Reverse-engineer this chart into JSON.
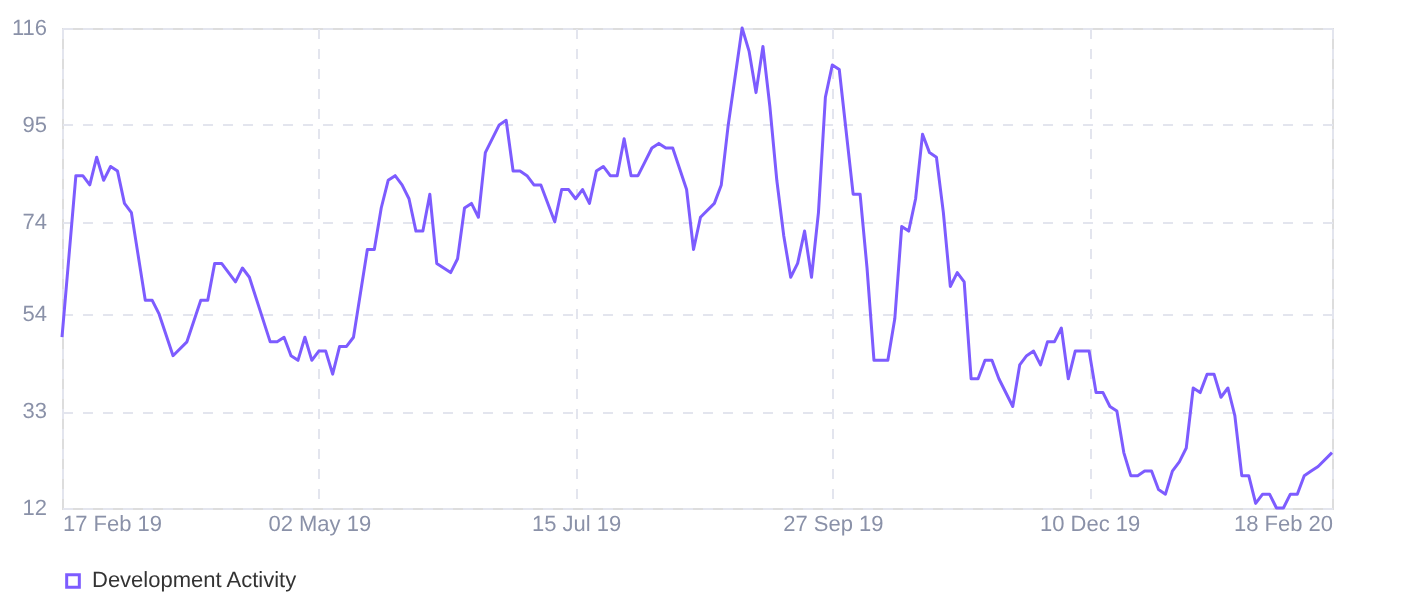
{
  "chart_data": {
    "type": "line",
    "x": [
      "2019-02-17",
      "2019-02-21",
      "2019-02-23",
      "2019-02-25",
      "2019-02-27",
      "2019-03-01",
      "2019-03-03",
      "2019-03-05",
      "2019-03-07",
      "2019-03-09",
      "2019-03-13",
      "2019-03-15",
      "2019-03-17",
      "2019-03-21",
      "2019-03-25",
      "2019-03-29",
      "2019-03-31",
      "2019-04-02",
      "2019-04-04",
      "2019-04-06",
      "2019-04-08",
      "2019-04-10",
      "2019-04-12",
      "2019-04-18",
      "2019-04-20",
      "2019-04-22",
      "2019-04-24",
      "2019-04-26",
      "2019-04-28",
      "2019-04-30",
      "2019-05-02",
      "2019-05-04",
      "2019-05-06",
      "2019-05-08",
      "2019-05-10",
      "2019-05-12",
      "2019-05-16",
      "2019-05-18",
      "2019-05-20",
      "2019-05-22",
      "2019-05-24",
      "2019-05-26",
      "2019-05-28",
      "2019-05-30",
      "2019-06-01",
      "2019-06-03",
      "2019-06-05",
      "2019-06-07",
      "2019-06-09",
      "2019-06-11",
      "2019-06-13",
      "2019-06-15",
      "2019-06-17",
      "2019-06-19",
      "2019-06-23",
      "2019-06-25",
      "2019-06-27",
      "2019-06-29",
      "2019-07-01",
      "2019-07-03",
      "2019-07-05",
      "2019-07-09",
      "2019-07-11",
      "2019-07-13",
      "2019-07-15",
      "2019-07-17",
      "2019-07-19",
      "2019-07-21",
      "2019-07-23",
      "2019-07-25",
      "2019-07-27",
      "2019-07-29",
      "2019-07-31",
      "2019-08-02",
      "2019-08-04",
      "2019-08-06",
      "2019-08-08",
      "2019-08-10",
      "2019-08-12",
      "2019-08-16",
      "2019-08-18",
      "2019-08-20",
      "2019-08-24",
      "2019-08-26",
      "2019-08-28",
      "2019-09-01",
      "2019-09-03",
      "2019-09-05",
      "2019-09-07",
      "2019-09-09",
      "2019-09-11",
      "2019-09-13",
      "2019-09-15",
      "2019-09-17",
      "2019-09-19",
      "2019-09-21",
      "2019-09-23",
      "2019-09-25",
      "2019-09-27",
      "2019-09-29",
      "2019-10-03",
      "2019-10-05",
      "2019-10-07",
      "2019-10-09",
      "2019-10-11",
      "2019-10-13",
      "2019-10-15",
      "2019-10-17",
      "2019-10-19",
      "2019-10-21",
      "2019-10-23",
      "2019-10-25",
      "2019-10-27",
      "2019-10-29",
      "2019-10-31",
      "2019-11-02",
      "2019-11-04",
      "2019-11-06",
      "2019-11-08",
      "2019-11-10",
      "2019-11-12",
      "2019-11-14",
      "2019-11-18",
      "2019-11-20",
      "2019-11-22",
      "2019-11-24",
      "2019-11-26",
      "2019-11-28",
      "2019-11-30",
      "2019-12-02",
      "2019-12-04",
      "2019-12-06",
      "2019-12-08",
      "2019-12-10",
      "2019-12-12",
      "2019-12-14",
      "2019-12-16",
      "2019-12-18",
      "2019-12-20",
      "2019-12-22",
      "2019-12-24",
      "2019-12-26",
      "2019-12-28",
      "2019-12-30",
      "2020-01-01",
      "2020-01-03",
      "2020-01-05",
      "2020-01-07",
      "2020-01-09",
      "2020-01-11",
      "2020-01-13",
      "2020-01-15",
      "2020-01-17",
      "2020-01-19",
      "2020-01-21",
      "2020-01-23",
      "2020-01-25",
      "2020-01-27",
      "2020-01-29",
      "2020-01-31",
      "2020-02-02",
      "2020-02-04",
      "2020-02-06",
      "2020-02-08",
      "2020-02-10",
      "2020-02-12",
      "2020-02-14",
      "2020-02-18"
    ],
    "series": [
      {
        "name": "Development Activity",
        "color": "#7d5cff",
        "values": [
          49,
          84,
          84,
          82,
          88,
          83,
          86,
          85,
          78,
          76,
          57,
          57,
          54,
          45,
          48,
          57,
          57,
          65,
          65,
          63,
          61,
          64,
          62,
          48,
          48,
          49,
          45,
          44,
          49,
          44,
          46,
          46,
          41,
          47,
          47,
          49,
          68,
          68,
          77,
          83,
          84,
          82,
          79,
          72,
          72,
          80,
          65,
          64,
          63,
          66,
          77,
          78,
          75,
          89,
          95,
          96,
          85,
          85,
          84,
          82,
          82,
          74,
          81,
          81,
          79,
          81,
          78,
          85,
          86,
          84,
          84,
          92,
          84,
          84,
          87,
          90,
          91,
          90,
          90,
          81,
          68,
          75,
          78,
          82,
          95,
          116,
          111,
          102,
          112,
          99,
          83,
          71,
          62,
          65,
          72,
          62,
          76,
          101,
          108,
          107,
          80,
          80,
          64,
          44,
          44,
          44,
          53,
          73,
          72,
          79,
          93,
          89,
          88,
          76,
          60,
          63,
          61,
          40,
          40,
          44,
          44,
          40,
          34,
          43,
          45,
          46,
          43,
          48,
          48,
          51,
          40,
          46,
          46,
          46,
          37,
          37,
          34,
          33,
          24,
          19,
          19,
          20,
          20,
          16,
          15,
          20,
          22,
          25,
          38,
          37,
          41,
          41,
          36,
          38,
          32,
          19,
          19,
          13,
          15,
          15,
          12,
          12,
          15,
          15,
          19,
          20,
          21,
          24
        ]
      }
    ],
    "xlim": [
      "2019-02-17",
      "2020-02-18"
    ],
    "xticks": [
      {
        "value": "2019-02-17",
        "label": "17 Feb 19"
      },
      {
        "value": "2019-05-02",
        "label": "02 May 19"
      },
      {
        "value": "2019-07-15",
        "label": "15 Jul 19"
      },
      {
        "value": "2019-09-27",
        "label": "27 Sep 19"
      },
      {
        "value": "2019-12-10",
        "label": "10 Dec 19"
      },
      {
        "value": "2020-02-18",
        "label": "18 Feb 20"
      }
    ],
    "ylim": [
      12,
      116
    ],
    "yticks": [
      12,
      33,
      54,
      74,
      95,
      116
    ],
    "grid": true,
    "legend": "bottom",
    "marker": "none",
    "line_style": "solid"
  }
}
